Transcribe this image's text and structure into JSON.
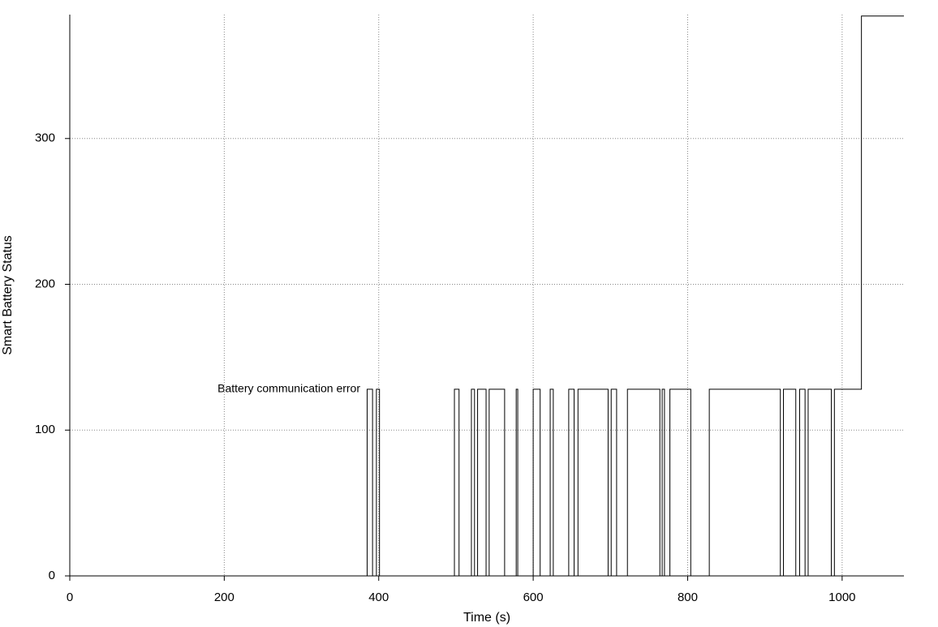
{
  "chart_data": {
    "type": "step",
    "x_label": "Time (s)",
    "y_label": "Smart Battery Status",
    "annotation": "Battery communication error",
    "color": "#000000",
    "x": [
      0,
      385,
      392,
      397,
      401,
      498,
      504,
      520,
      524,
      528,
      539,
      543,
      563,
      578,
      580,
      600,
      609,
      622,
      626,
      646,
      653,
      658,
      697,
      701,
      708,
      722,
      764,
      767,
      770,
      777,
      804,
      828,
      920,
      924,
      940,
      945,
      952,
      956,
      986,
      990,
      1025,
      1080
    ],
    "values": [
      0,
      128,
      0,
      128,
      0,
      128,
      0,
      128,
      0,
      128,
      0,
      128,
      0,
      128,
      0,
      128,
      0,
      128,
      0,
      128,
      0,
      128,
      0,
      128,
      0,
      128,
      0,
      128,
      0,
      128,
      0,
      128,
      0,
      128,
      0,
      128,
      0,
      128,
      0,
      128,
      384,
      384
    ],
    "xlim": [
      0,
      1080
    ],
    "ylim": [
      0,
      385
    ],
    "xticks": [
      0,
      200,
      400,
      600,
      800,
      1000
    ],
    "yticks": [
      0,
      100,
      200,
      300
    ],
    "grid": true
  }
}
